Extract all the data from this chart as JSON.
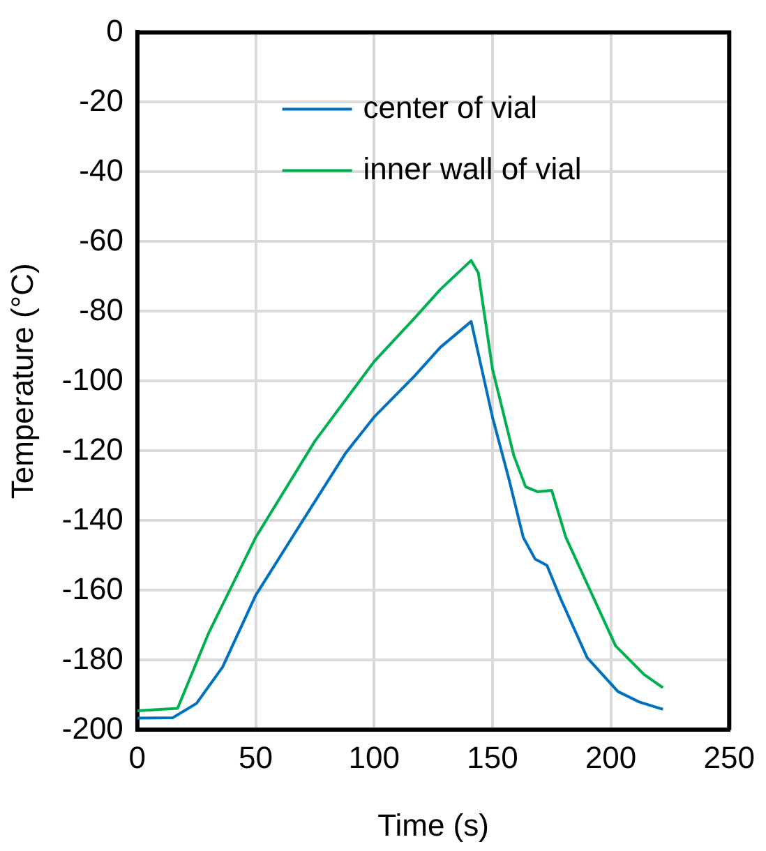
{
  "chart_data": {
    "type": "line",
    "xlabel": "Time (s)",
    "ylabel": "Temperature (°C)",
    "xlim": [
      0,
      250
    ],
    "xticks": [
      0,
      50,
      100,
      150,
      200,
      250
    ],
    "ylim": [
      -200,
      0
    ],
    "yticks": [
      -200,
      -180,
      -160,
      -140,
      -120,
      -100,
      -80,
      -60,
      -40,
      -20,
      0
    ],
    "grid": true,
    "legend": "top",
    "marker": "none",
    "line_style": "solid",
    "series": [
      {
        "name": "center of vial",
        "color": "#0070c0",
        "x": [
          0,
          15,
          25,
          36,
          50,
          68,
          88,
          100,
          117,
          128,
          141,
          150,
          157,
          163,
          168,
          173,
          179,
          190,
          203,
          212,
          222
        ],
        "values": [
          -196.6,
          -196.5,
          -192.4,
          -182,
          -161.4,
          -142,
          -120.6,
          -110.3,
          -98.6,
          -90.3,
          -82.9,
          -110.3,
          -128.2,
          -144.8,
          -151,
          -152.8,
          -162.7,
          -179.3,
          -189,
          -192,
          -194.1
        ]
      },
      {
        "name": "inner wall of vial",
        "color": "#00b050",
        "x": [
          0,
          17,
          30,
          50,
          75,
          100,
          117,
          128,
          141,
          144,
          150,
          159,
          164,
          169,
          175,
          181,
          202,
          214,
          222
        ],
        "values": [
          -194.5,
          -193.8,
          -172.4,
          -144.8,
          -117.2,
          -94.4,
          -82,
          -73.7,
          -65.4,
          -68.9,
          -96.5,
          -121.3,
          -130.3,
          -131.7,
          -131.3,
          -144.8,
          -175.9,
          -184.1,
          -187.9
        ]
      }
    ]
  }
}
